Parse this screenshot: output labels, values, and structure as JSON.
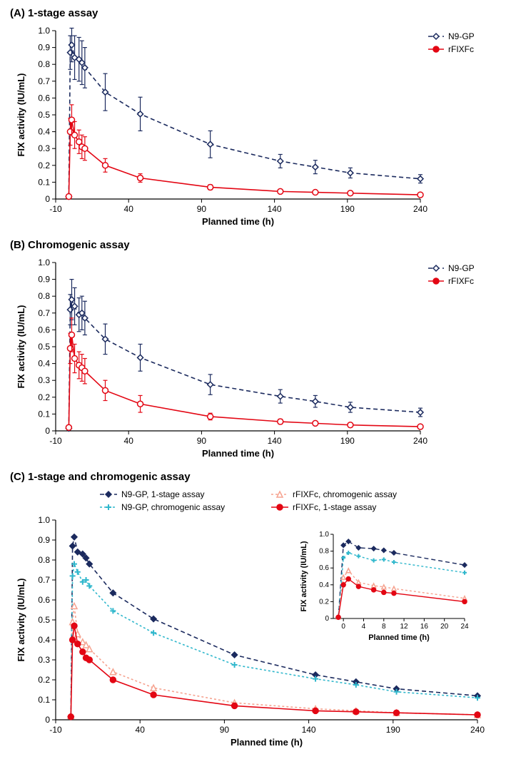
{
  "colors": {
    "n9gp": "#1b2a5e",
    "rfixfc": "#e30613",
    "n9gp_chrom": "#2fb7cc",
    "rfixfc_chrom": "#f6a390",
    "axis": "#000000",
    "bg": "#ffffff"
  },
  "fonts": {
    "panel_title_size": 15,
    "axis_label_size": 13,
    "tick_size": 12,
    "legend_size": 12
  },
  "panelA": {
    "title": "(A) 1-stage assay",
    "xlabel": "Planned time (h)",
    "ylabel": "FIX activity (IU/mL)",
    "xlim": [
      -10,
      240
    ],
    "ylim": [
      0,
      1.0
    ],
    "xticks": [
      -10,
      40,
      90,
      140,
      190,
      240
    ],
    "yticks": [
      0,
      0.1,
      0.2,
      0.3,
      0.4,
      0.5,
      0.6,
      0.7,
      0.8,
      0.9,
      1.0
    ],
    "series": {
      "n9gp": {
        "label": "N9-GP",
        "color_key": "n9gp",
        "marker": "diamond",
        "dash": "6,4",
        "points": [
          {
            "x": -1,
            "y": 0.015,
            "err": 0.01
          },
          {
            "x": 0,
            "y": 0.87,
            "err": 0.1
          },
          {
            "x": 1,
            "y": 0.915,
            "err": 0.1
          },
          {
            "x": 3,
            "y": 0.84,
            "err": 0.13
          },
          {
            "x": 6,
            "y": 0.83,
            "err": 0.13
          },
          {
            "x": 8,
            "y": 0.81,
            "err": 0.13
          },
          {
            "x": 10,
            "y": 0.78,
            "err": 0.12
          },
          {
            "x": 24,
            "y": 0.635,
            "err": 0.11
          },
          {
            "x": 48,
            "y": 0.505,
            "err": 0.1
          },
          {
            "x": 96,
            "y": 0.325,
            "err": 0.08
          },
          {
            "x": 144,
            "y": 0.225,
            "err": 0.04
          },
          {
            "x": 168,
            "y": 0.19,
            "err": 0.04
          },
          {
            "x": 192,
            "y": 0.155,
            "err": 0.03
          },
          {
            "x": 240,
            "y": 0.12,
            "err": 0.025
          }
        ]
      },
      "rfixfc": {
        "label": "rFIXFc",
        "color_key": "rfixfc",
        "marker": "circle",
        "dash": "none",
        "points": [
          {
            "x": -1,
            "y": 0.015,
            "err": 0.01
          },
          {
            "x": 0,
            "y": 0.4,
            "err": 0.08
          },
          {
            "x": 1,
            "y": 0.47,
            "err": 0.09
          },
          {
            "x": 3,
            "y": 0.38,
            "err": 0.08
          },
          {
            "x": 6,
            "y": 0.34,
            "err": 0.07
          },
          {
            "x": 8,
            "y": 0.31,
            "err": 0.07
          },
          {
            "x": 10,
            "y": 0.3,
            "err": 0.07
          },
          {
            "x": 24,
            "y": 0.2,
            "err": 0.04
          },
          {
            "x": 48,
            "y": 0.125,
            "err": 0.025
          },
          {
            "x": 96,
            "y": 0.07,
            "err": 0.015
          },
          {
            "x": 144,
            "y": 0.045,
            "err": 0.01
          },
          {
            "x": 168,
            "y": 0.04,
            "err": 0.01
          },
          {
            "x": 192,
            "y": 0.035,
            "err": 0.01
          },
          {
            "x": 240,
            "y": 0.025,
            "err": 0.01
          }
        ]
      }
    }
  },
  "panelB": {
    "title": "(B) Chromogenic assay",
    "xlabel": "Planned time (h)",
    "ylabel": "FIX activity (IU/mL)",
    "xlim": [
      -10,
      240
    ],
    "ylim": [
      0,
      1.0
    ],
    "xticks": [
      -10,
      40,
      90,
      140,
      190,
      240
    ],
    "yticks": [
      0,
      0.1,
      0.2,
      0.3,
      0.4,
      0.5,
      0.6,
      0.7,
      0.8,
      0.9,
      1.0
    ],
    "series": {
      "n9gp": {
        "label": "N9-GP",
        "color_key": "n9gp",
        "marker": "diamond",
        "dash": "6,4",
        "points": [
          {
            "x": -1,
            "y": 0.015,
            "err": 0.01
          },
          {
            "x": 0,
            "y": 0.72,
            "err": 0.09
          },
          {
            "x": 1,
            "y": 0.78,
            "err": 0.12
          },
          {
            "x": 3,
            "y": 0.74,
            "err": 0.11
          },
          {
            "x": 6,
            "y": 0.69,
            "err": 0.1
          },
          {
            "x": 8,
            "y": 0.7,
            "err": 0.1
          },
          {
            "x": 10,
            "y": 0.67,
            "err": 0.1
          },
          {
            "x": 24,
            "y": 0.545,
            "err": 0.09
          },
          {
            "x": 48,
            "y": 0.435,
            "err": 0.08
          },
          {
            "x": 96,
            "y": 0.275,
            "err": 0.06
          },
          {
            "x": 144,
            "y": 0.205,
            "err": 0.04
          },
          {
            "x": 168,
            "y": 0.175,
            "err": 0.035
          },
          {
            "x": 192,
            "y": 0.14,
            "err": 0.03
          },
          {
            "x": 240,
            "y": 0.11,
            "err": 0.025
          }
        ]
      },
      "rfixfc": {
        "label": "rFIXFc",
        "color_key": "rfixfc",
        "marker": "circle",
        "dash": "none",
        "points": [
          {
            "x": -1,
            "y": 0.02,
            "err": 0.01
          },
          {
            "x": 0,
            "y": 0.49,
            "err": 0.09
          },
          {
            "x": 1,
            "y": 0.57,
            "err": 0.1
          },
          {
            "x": 3,
            "y": 0.43,
            "err": 0.085
          },
          {
            "x": 6,
            "y": 0.39,
            "err": 0.08
          },
          {
            "x": 8,
            "y": 0.375,
            "err": 0.08
          },
          {
            "x": 10,
            "y": 0.355,
            "err": 0.075
          },
          {
            "x": 24,
            "y": 0.24,
            "err": 0.06
          },
          {
            "x": 48,
            "y": 0.16,
            "err": 0.05
          },
          {
            "x": 96,
            "y": 0.085,
            "err": 0.02
          },
          {
            "x": 144,
            "y": 0.055,
            "err": 0.015
          },
          {
            "x": 168,
            "y": 0.045,
            "err": 0.01
          },
          {
            "x": 192,
            "y": 0.035,
            "err": 0.01
          },
          {
            "x": 240,
            "y": 0.025,
            "err": 0.01
          }
        ]
      }
    }
  },
  "panelC": {
    "title": "(C) 1-stage and chromogenic assay",
    "xlabel": "Planned time (h)",
    "ylabel": "FIX activity (IU/mL)",
    "xlim": [
      -10,
      240
    ],
    "ylim": [
      0,
      1.0
    ],
    "xticks": [
      -10,
      40,
      90,
      140,
      190,
      240
    ],
    "yticks": [
      0,
      0.1,
      0.2,
      0.3,
      0.4,
      0.5,
      0.6,
      0.7,
      0.8,
      0.9,
      1.0
    ],
    "legend": [
      {
        "label": "N9-GP, 1-stage assay",
        "color_key": "n9gp",
        "marker": "diamond",
        "dash": "6,4",
        "fill": "solid"
      },
      {
        "label": "N9-GP, chromogenic assay",
        "color_key": "n9gp_chrom",
        "marker": "plus",
        "dash": "3,3",
        "fill": "solid"
      },
      {
        "label": "rFIXFc, chromogenic assay",
        "color_key": "rfixfc_chrom",
        "marker": "triangle",
        "dash": "3,3",
        "fill": "open"
      },
      {
        "label": "rFIXFc, 1-stage assay",
        "color_key": "rfixfc",
        "marker": "circle",
        "dash": "none",
        "fill": "solid"
      }
    ],
    "series": {
      "n9gp_1s": {
        "color_key": "n9gp",
        "marker": "diamond",
        "dash": "6,4",
        "fill": "solid",
        "points": [
          {
            "x": -1,
            "y": 0.015
          },
          {
            "x": 0,
            "y": 0.87
          },
          {
            "x": 1,
            "y": 0.915
          },
          {
            "x": 3,
            "y": 0.84
          },
          {
            "x": 6,
            "y": 0.83
          },
          {
            "x": 8,
            "y": 0.81
          },
          {
            "x": 10,
            "y": 0.78
          },
          {
            "x": 24,
            "y": 0.635
          },
          {
            "x": 48,
            "y": 0.505
          },
          {
            "x": 96,
            "y": 0.325
          },
          {
            "x": 144,
            "y": 0.225
          },
          {
            "x": 168,
            "y": 0.19
          },
          {
            "x": 192,
            "y": 0.155
          },
          {
            "x": 240,
            "y": 0.12
          }
        ]
      },
      "n9gp_ch": {
        "color_key": "n9gp_chrom",
        "marker": "plus",
        "dash": "3,3",
        "fill": "solid",
        "points": [
          {
            "x": -1,
            "y": 0.015
          },
          {
            "x": 0,
            "y": 0.72
          },
          {
            "x": 1,
            "y": 0.78
          },
          {
            "x": 3,
            "y": 0.74
          },
          {
            "x": 6,
            "y": 0.69
          },
          {
            "x": 8,
            "y": 0.7
          },
          {
            "x": 10,
            "y": 0.67
          },
          {
            "x": 24,
            "y": 0.545
          },
          {
            "x": 48,
            "y": 0.435
          },
          {
            "x": 96,
            "y": 0.275
          },
          {
            "x": 144,
            "y": 0.205
          },
          {
            "x": 168,
            "y": 0.175
          },
          {
            "x": 192,
            "y": 0.14
          },
          {
            "x": 240,
            "y": 0.11
          }
        ]
      },
      "rfixfc_ch": {
        "color_key": "rfixfc_chrom",
        "marker": "triangle",
        "dash": "3,3",
        "fill": "open",
        "points": [
          {
            "x": -1,
            "y": 0.02
          },
          {
            "x": 0,
            "y": 0.49
          },
          {
            "x": 1,
            "y": 0.57
          },
          {
            "x": 3,
            "y": 0.43
          },
          {
            "x": 6,
            "y": 0.39
          },
          {
            "x": 8,
            "y": 0.375
          },
          {
            "x": 10,
            "y": 0.355
          },
          {
            "x": 24,
            "y": 0.24
          },
          {
            "x": 48,
            "y": 0.16
          },
          {
            "x": 96,
            "y": 0.085
          },
          {
            "x": 144,
            "y": 0.055
          },
          {
            "x": 168,
            "y": 0.045
          },
          {
            "x": 192,
            "y": 0.035
          },
          {
            "x": 240,
            "y": 0.025
          }
        ]
      },
      "rfixfc_1s": {
        "color_key": "rfixfc",
        "marker": "circle",
        "dash": "none",
        "fill": "solid",
        "points": [
          {
            "x": -1,
            "y": 0.015
          },
          {
            "x": 0,
            "y": 0.4
          },
          {
            "x": 1,
            "y": 0.47
          },
          {
            "x": 3,
            "y": 0.38
          },
          {
            "x": 6,
            "y": 0.34
          },
          {
            "x": 8,
            "y": 0.31
          },
          {
            "x": 10,
            "y": 0.3
          },
          {
            "x": 24,
            "y": 0.2
          },
          {
            "x": 48,
            "y": 0.125
          },
          {
            "x": 96,
            "y": 0.07
          },
          {
            "x": 144,
            "y": 0.045
          },
          {
            "x": 168,
            "y": 0.04
          },
          {
            "x": 192,
            "y": 0.035
          },
          {
            "x": 240,
            "y": 0.025
          }
        ]
      }
    },
    "inset": {
      "xlabel": "Planned time (h)",
      "ylabel": "FIX activity (IU/mL)",
      "xlim": [
        -2,
        24
      ],
      "ylim": [
        0,
        1.0
      ],
      "xticks": [
        0,
        4,
        8,
        12,
        16,
        20,
        24
      ],
      "yticks": [
        0,
        0.2,
        0.4,
        0.6,
        0.8,
        1.0
      ]
    }
  }
}
